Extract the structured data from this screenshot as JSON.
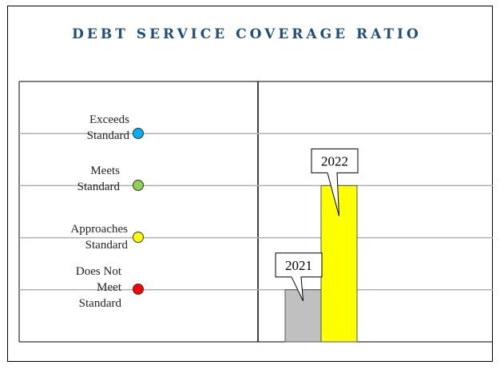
{
  "chart_data": {
    "type": "bar",
    "title": "DEBT SERVICE COVERAGE RATIO",
    "categories": [
      "2021",
      "2022"
    ],
    "values": [
      1.0,
      3.0
    ],
    "bar_colors": [
      "#c0c0c0",
      "#ffff00"
    ],
    "ylim": [
      0,
      5
    ],
    "grid": true,
    "levels": [
      {
        "label": "Exceeds Standard",
        "color": "#00b0f0",
        "value": 4
      },
      {
        "label": "Meets Standard",
        "color": "#92d050",
        "value": 3
      },
      {
        "label": "Approaches Standard",
        "color": "#ffff00",
        "value": 2
      },
      {
        "label": "Does Not Meet Standard",
        "color": "#ff0000",
        "value": 1
      }
    ]
  },
  "colors": {
    "title": "#1f4e79",
    "grid": "#b0b0b0"
  }
}
